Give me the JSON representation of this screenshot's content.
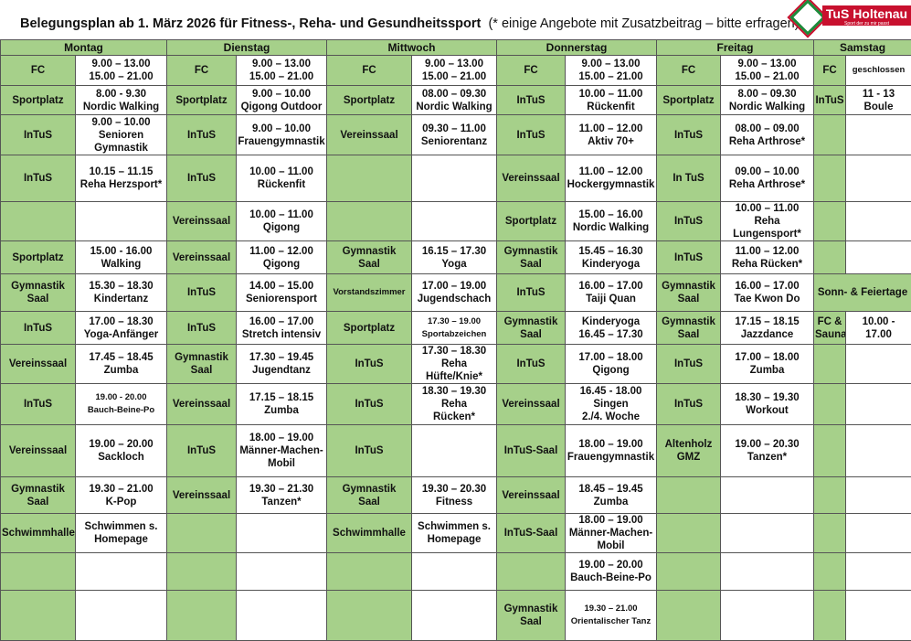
{
  "title": {
    "main": "Belegungsplan ab 1. März 2026 für Fitness-, Reha- und Gesundheitssport",
    "note": "(* einige Angebote mit Zusatzbeitrag – bitte  erfragen)"
  },
  "logo": {
    "name": "TuS Holtenau",
    "tagline": "Sport der zu mir passt",
    "colors": {
      "green": "#1c8a3a",
      "red": "#c8102e"
    }
  },
  "colors": {
    "location_cell": "#a6d08a",
    "time_cell": "#ffffff"
  },
  "days": [
    "Montag",
    "Dienstag",
    "Mittwoch",
    "Donnerstag",
    "Freitag",
    "Samstag"
  ],
  "rows": [
    [
      [
        "FC",
        "9.00 – 13.00\n15.00 – 21.00"
      ],
      [
        "FC",
        "9.00 – 13.00\n15.00 – 21.00"
      ],
      [
        "FC",
        "9.00 – 13.00\n15.00 – 21.00"
      ],
      [
        "FC",
        "9.00 – 13.00\n15.00 – 21.00"
      ],
      [
        "FC",
        "9.00 – 13.00\n15.00 – 21.00"
      ],
      [
        "FC",
        "geschlossen"
      ]
    ],
    [
      [
        "Sportplatz",
        "8.00 - 9.30\nNordic Walking"
      ],
      [
        "Sportplatz",
        "9.00 – 10.00\nQigong Outdoor"
      ],
      [
        "Sportplatz",
        "08.00 – 09.30\nNordic Walking"
      ],
      [
        "InTuS",
        "10.00 – 11.00\nRückenfit"
      ],
      [
        "Sportplatz",
        "8.00 – 09.30\nNordic Walking"
      ],
      [
        "InTuS",
        "11 - 13\nBoule"
      ]
    ],
    [
      [
        "InTuS",
        "9.00 – 10.00\nSenioren\nGymnastik"
      ],
      [
        "InTuS",
        "9.00 – 10.00\nFrauengymnastik"
      ],
      [
        "Vereinssaal",
        "09.30 – 11.00\nSeniorentanz"
      ],
      [
        "InTuS",
        "11.00 – 12.00\nAktiv 70+"
      ],
      [
        "InTuS",
        "08.00 – 09.00\nReha Arthrose*"
      ],
      [
        "",
        ""
      ]
    ],
    [
      [
        "InTuS",
        "10.15 – 11.15\nReha Herzsport*"
      ],
      [
        "InTuS",
        "10.00 – 11.00\nRückenfit"
      ],
      [
        "",
        ""
      ],
      [
        "Vereinssaal",
        "11.00 – 12.00\nHockergymnastik"
      ],
      [
        "In TuS",
        "09.00 – 10.00\nReha Arthrose*"
      ],
      [
        "",
        ""
      ]
    ],
    [
      [
        "",
        ""
      ],
      [
        "Vereinssaal",
        "10.00 – 11.00\nQigong"
      ],
      [
        "",
        ""
      ],
      [
        "Sportplatz",
        "15.00 – 16.00\nNordic Walking"
      ],
      [
        "InTuS",
        "10.00 – 11.00\nReha\nLungensport*"
      ],
      [
        "",
        ""
      ]
    ],
    [
      [
        "Sportplatz",
        "15.00 - 16.00\nWalking"
      ],
      [
        "Vereinssaal",
        "11.00 – 12.00\nQigong"
      ],
      [
        "Gymnastik\nSaal",
        "16.15 – 17.30\nYoga"
      ],
      [
        "Gymnastik\nSaal",
        "15.45 – 16.30\nKinderyoga"
      ],
      [
        "InTuS",
        "11.00 – 12.00\nReha Rücken*"
      ],
      [
        "",
        ""
      ]
    ],
    [
      [
        "Gymnastik\nSaal",
        "15.30 – 18.30\nKindertanz"
      ],
      [
        "InTuS",
        "14.00 – 15.00\nSeniorensport"
      ],
      [
        "Vorstandszimmer",
        "17.00 – 19.00\nJugendschach"
      ],
      [
        "InTuS",
        "16.00 – 17.00\nTaiji Quan"
      ],
      [
        "Gymnastik\nSaal",
        "16.00 – 17.00\nTae Kwon Do"
      ],
      [
        "Sonn- & Feiertage"
      ]
    ],
    [
      [
        "InTuS",
        "17.00 – 18.30\nYoga-Anfänger"
      ],
      [
        "InTuS",
        "16.00 – 17.00\nStretch intensiv"
      ],
      [
        "Sportplatz",
        "17.30 – 19.00\nSportabzeichen"
      ],
      [
        "Gymnastik\nSaal",
        "Kinderyoga\n16.45 – 17.30"
      ],
      [
        "Gymnastik\nSaal",
        "17.15 – 18.15\nJazzdance"
      ],
      [
        "FC &\nSauna",
        "10.00 -\n17.00"
      ]
    ],
    [
      [
        "Vereinssaal",
        "17.45 – 18.45\nZumba"
      ],
      [
        "Gymnastik\nSaal",
        "17.30 – 19.45\nJugendtanz"
      ],
      [
        "InTuS",
        "17.30 – 18.30\nReha\nHüfte/Knie*"
      ],
      [
        "InTuS",
        "17.00 – 18.00\nQigong"
      ],
      [
        "InTuS",
        "17.00 – 18.00\nZumba"
      ],
      [
        "",
        ""
      ]
    ],
    [
      [
        "InTuS",
        "19.00 - 20.00\nBauch-Beine-Po"
      ],
      [
        "Vereinssaal",
        "17.15 – 18.15\nZumba"
      ],
      [
        "InTuS",
        "18.30 – 19.30\nReha\nRücken*"
      ],
      [
        "Vereinssaal",
        "16.45 -  18.00\nSingen\n2./4. Woche"
      ],
      [
        "InTuS",
        "18.30 – 19.30\nWorkout"
      ],
      [
        "",
        ""
      ]
    ],
    [
      [
        "Vereinssaal",
        "19.00 – 20.00\nSackloch"
      ],
      [
        "InTuS",
        "18.00 – 19.00\nMänner-Machen-\nMobil"
      ],
      [
        "InTuS",
        ""
      ],
      [
        "InTuS-Saal",
        "18.00 – 19.00\nFrauengymnastik"
      ],
      [
        "Altenholz\nGMZ",
        "19.00 – 20.30\nTanzen*"
      ],
      [
        "",
        ""
      ]
    ],
    [
      [
        "Gymnastik\nSaal",
        "19.30 – 21.00\nK-Pop"
      ],
      [
        "Vereinssaal",
        "19.30 – 21.30\nTanzen*"
      ],
      [
        "Gymnastik\nSaal",
        "19.30 – 20.30\nFitness"
      ],
      [
        "Vereinssaal",
        "18.45 – 19.45\nZumba"
      ],
      [
        "",
        ""
      ],
      [
        "",
        ""
      ]
    ],
    [
      [
        "Schwimmhalle",
        "Schwimmen s.\nHomepage"
      ],
      [
        "",
        ""
      ],
      [
        "Schwimmhalle",
        "Schwimmen s.\nHomepage"
      ],
      [
        "InTuS-Saal",
        "18.00 – 19.00\nMänner-Machen-\nMobil"
      ],
      [
        "",
        ""
      ],
      [
        "",
        ""
      ]
    ],
    [
      [
        "",
        ""
      ],
      [
        "",
        ""
      ],
      [
        "",
        ""
      ],
      [
        "",
        "19.00 – 20.00\nBauch-Beine-Po"
      ],
      [
        "",
        ""
      ],
      [
        "",
        ""
      ]
    ],
    [
      [
        "",
        ""
      ],
      [
        "",
        ""
      ],
      [
        "",
        ""
      ],
      [
        "Gymnastik\nSaal",
        "19.30 – 21.00\nOrientalischer Tanz"
      ],
      [
        "",
        ""
      ],
      [
        "",
        ""
      ]
    ]
  ]
}
